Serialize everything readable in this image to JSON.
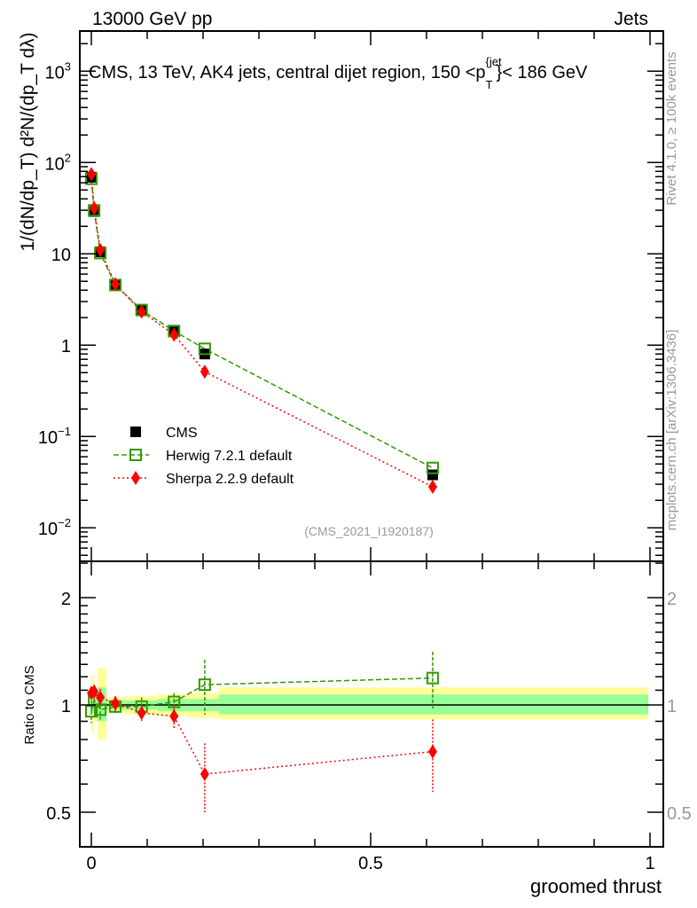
{
  "header": {
    "left": "13000 GeV pp",
    "right": "Jets"
  },
  "side_labels": {
    "rivet": "Rivet 4.1.0, ≥ 100k events",
    "mcplots": "mcplots.cern.ch [arXiv:1306.3436]"
  },
  "chart_data": {
    "type": "scatter",
    "title": "CMS, 13 TeV, AK4 jets, central dijet region, 150 < p_T^{jet} < 186 GeV",
    "title_parts": {
      "main": "CMS, 13 TeV, AK4 jets, central dijet region, 150 <p",
      "sup": "{jet",
      "sub": "T",
      "tail": "}< 186 GeV"
    },
    "analysis_id": "(CMS_2021_I1920187)",
    "xlabel": "groomed thrust",
    "ylabel": "1/(dN/dp_T) d²N/(dp_T dλ)",
    "ratio_ylabel": "Ratio to CMS",
    "xlim": [
      0,
      1
    ],
    "ylim": [
      0.0043,
      2750
    ],
    "yscale": "log",
    "ratio_ylim": [
      0.4,
      2.53
    ],
    "x_ticks": [
      "0",
      "0.5",
      "1"
    ],
    "y_ticks": [
      {
        "v": 1000,
        "label": "10",
        "exp": "3"
      },
      {
        "v": 100,
        "label": "10",
        "exp": "2"
      },
      {
        "v": 10,
        "label": "10",
        "exp": ""
      },
      {
        "v": 1,
        "label": "1",
        "exp": ""
      },
      {
        "v": 0.1,
        "label": "10",
        "exp": "−1"
      },
      {
        "v": 0.01,
        "label": "10",
        "exp": "−2"
      }
    ],
    "ratio_ticks": [
      {
        "v": 2,
        "label": "2"
      },
      {
        "v": 1,
        "label": "1"
      },
      {
        "v": 0.5,
        "label": "0.5"
      }
    ],
    "legend_position": "center-left",
    "x": [
      0.0,
      0.005,
      0.016,
      0.043,
      0.09,
      0.148,
      0.203,
      0.611
    ],
    "series": [
      {
        "name": "CMS",
        "color": "#000000",
        "marker": "square-filled",
        "values": [
          69,
          29,
          10.5,
          4.6,
          2.45,
          1.4,
          0.8,
          0.038
        ]
      },
      {
        "name": "Herwig 7.2.1 default",
        "color": "#339900",
        "marker": "square-open",
        "line": "dashed",
        "ratio": [
          0.96,
          1.03,
          0.97,
          0.99,
          0.99,
          1.02,
          1.14,
          1.19
        ],
        "ratio_err": [
          0.07,
          0.05,
          0.06,
          0.05,
          0.06,
          0.06,
          0.2,
          0.22
        ]
      },
      {
        "name": "Sherpa 2.2.9 default",
        "color": "#ff0000",
        "marker": "diamond",
        "line": "dotted",
        "ratio": [
          1.08,
          1.09,
          1.05,
          1.01,
          0.95,
          0.93,
          0.64,
          0.74
        ],
        "ratio_err": [
          0.05,
          0.05,
          0.06,
          0.05,
          0.05,
          0.07,
          0.14,
          0.17
        ]
      }
    ],
    "bands": {
      "edges": [
        0,
        0.005,
        0.011,
        0.027,
        0.06,
        0.119,
        0.176,
        0.228,
        0.997
      ],
      "total": [
        [
          0.84,
          1.2
        ],
        [
          0.9,
          1.1
        ],
        [
          0.8,
          1.27
        ],
        [
          0.95,
          1.05
        ],
        [
          0.94,
          1.06
        ],
        [
          0.93,
          1.07
        ],
        [
          0.92,
          1.08
        ],
        [
          0.91,
          1.12
        ]
      ],
      "stat": [
        [
          0.95,
          1.06
        ],
        [
          0.96,
          1.05
        ],
        [
          0.9,
          1.12
        ],
        [
          0.97,
          1.03
        ],
        [
          0.97,
          1.03
        ],
        [
          0.96,
          1.04
        ],
        [
          0.96,
          1.04
        ],
        [
          0.94,
          1.07
        ]
      ]
    }
  }
}
